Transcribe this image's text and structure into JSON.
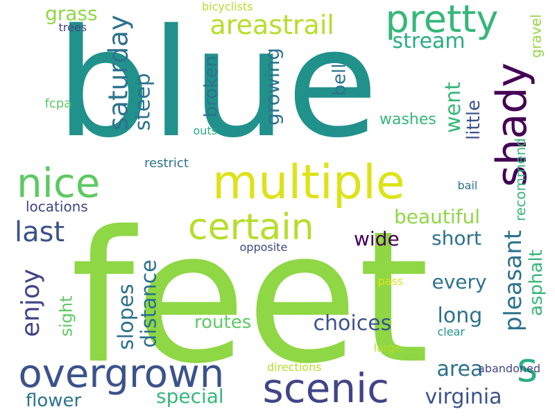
{
  "palette": {
    "dark_purple": "#440154",
    "indigo": "#3b528b",
    "slate_blue": "#414487",
    "teal_blue": "#2c728e",
    "teal": "#21918c",
    "sea_green": "#28ae80",
    "emerald": "#35b779",
    "green": "#5ec962",
    "light_green": "#8fd744",
    "lime": "#b5de2b",
    "yellow": "#dde318"
  },
  "words": [
    {
      "text": "blue",
      "color": "#21918c"
    },
    {
      "text": "feet",
      "color": "#8fd744"
    },
    {
      "text": "multiple",
      "color": "#dde318"
    },
    {
      "text": "scenic",
      "color": "#414487"
    },
    {
      "text": "overgrown",
      "color": "#3b528b"
    },
    {
      "text": "certain",
      "color": "#b5de2b"
    },
    {
      "text": "pretty",
      "color": "#35b779"
    },
    {
      "text": "nice",
      "color": "#5ec962"
    },
    {
      "text": "shady",
      "color": "#440154"
    },
    {
      "text": "s",
      "color": "#28ae80"
    },
    {
      "text": "areastrail",
      "color": "#b5de2b"
    },
    {
      "text": "saturday",
      "color": "#2c728e"
    },
    {
      "text": "pleasant",
      "color": "#2c728e"
    },
    {
      "text": "last",
      "color": "#3b528b"
    },
    {
      "text": "enjoy",
      "color": "#414487"
    },
    {
      "text": "choices",
      "color": "#3b528b"
    },
    {
      "text": "virginia",
      "color": "#3b528b"
    },
    {
      "text": "routes",
      "color": "#5ec962"
    },
    {
      "text": "special",
      "color": "#35b779"
    },
    {
      "text": "beautiful",
      "color": "#8fd744"
    },
    {
      "text": "stream",
      "color": "#28ae80"
    },
    {
      "text": "distance",
      "color": "#2c728e"
    },
    {
      "text": "slopes",
      "color": "#2c728e"
    },
    {
      "text": "broken",
      "color": "#2c728e"
    },
    {
      "text": "growing",
      "color": "#2c728e"
    },
    {
      "text": "steep",
      "color": "#2c728e"
    },
    {
      "text": "went",
      "color": "#35b779"
    },
    {
      "text": "grass",
      "color": "#8fd744"
    },
    {
      "text": "short",
      "color": "#2c728e"
    },
    {
      "text": "every",
      "color": "#2c728e"
    },
    {
      "text": "long",
      "color": "#2c728e"
    },
    {
      "text": "area",
      "color": "#2c728e"
    },
    {
      "text": "flower",
      "color": "#2c728e"
    },
    {
      "text": "wide",
      "color": "#440154"
    },
    {
      "text": "little",
      "color": "#3b528b"
    },
    {
      "text": "asphalt",
      "color": "#35b779"
    },
    {
      "text": "recommend",
      "color": "#35b779"
    },
    {
      "text": "sight",
      "color": "#5ec962"
    },
    {
      "text": "bell",
      "color": "#2c728e"
    },
    {
      "text": "washes",
      "color": "#35b779"
    },
    {
      "text": "locations",
      "color": "#414487"
    },
    {
      "text": "gravel",
      "color": "#8fd744"
    },
    {
      "text": "trees",
      "color": "#414487"
    },
    {
      "text": "bicyclists",
      "color": "#b5de2b"
    },
    {
      "text": "fcpa",
      "color": "#5ec962"
    },
    {
      "text": "outs",
      "color": "#28ae80"
    },
    {
      "text": "restrict",
      "color": "#2c728e"
    },
    {
      "text": "bail",
      "color": "#2c728e"
    },
    {
      "text": "opposite",
      "color": "#414487"
    },
    {
      "text": "pass",
      "color": "#dde318"
    },
    {
      "text": "clear",
      "color": "#21918c"
    },
    {
      "text": "large",
      "color": "#b5de2b"
    },
    {
      "text": "abandoned",
      "color": "#414487"
    },
    {
      "text": "directions",
      "color": "#b5de2b"
    }
  ]
}
